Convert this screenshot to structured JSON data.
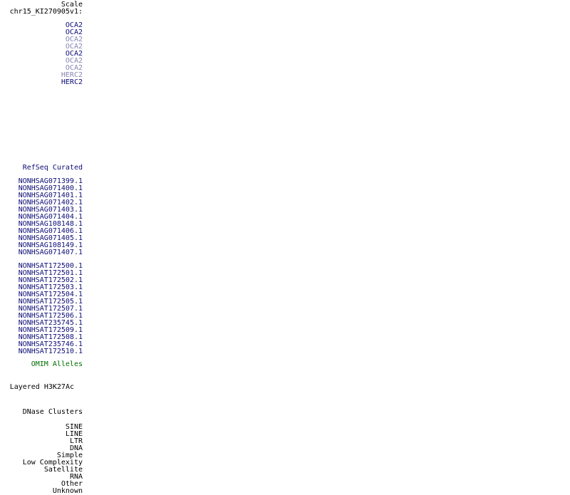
{
  "colors": {
    "page_bg": "#ffffff",
    "dark_blue": "#0c0c78",
    "light_blue": "#8486b4",
    "green": "#007000",
    "black": "#000000"
  },
  "ruler": {
    "scale_label": "Scale",
    "position_label": "chr15_KI270905v1:"
  },
  "gene_track": {
    "items": [
      {
        "label": "OCA2",
        "shade": "dark"
      },
      {
        "label": "OCA2",
        "shade": "dark"
      },
      {
        "label": "OCA2",
        "shade": "light"
      },
      {
        "label": "OCA2",
        "shade": "light"
      },
      {
        "label": "OCA2",
        "shade": "dark"
      },
      {
        "label": "OCA2",
        "shade": "light"
      },
      {
        "label": "OCA2",
        "shade": "light"
      },
      {
        "label": "HERC2",
        "shade": "light"
      },
      {
        "label": "HERC2",
        "shade": "dark"
      }
    ]
  },
  "refseq": {
    "title": "RefSeq Curated",
    "gene_ids": [
      "NONHSAG071399.1",
      "NONHSAG071400.1",
      "NONHSAG071401.1",
      "NONHSAG071402.1",
      "NONHSAG071403.1",
      "NONHSAG071404.1",
      "NONHSAG108148.1",
      "NONHSAG071406.1",
      "NONHSAG071405.1",
      "NONHSAG108149.1",
      "NONHSAG071407.1"
    ],
    "transcript_ids": [
      "NONHSAT172500.1",
      "NONHSAT172501.1",
      "NONHSAT172502.1",
      "NONHSAT172503.1",
      "NONHSAT172504.1",
      "NONHSAT172505.1",
      "NONHSAT172507.1",
      "NONHSAT172506.1",
      "NONHSAT235745.1",
      "NONHSAT172509.1",
      "NONHSAT172508.1",
      "NONHSAT235746.1",
      "NONHSAT172510.1"
    ]
  },
  "omim": {
    "title": "OMIM Alleles"
  },
  "h3k27ac": {
    "title": "Layered H3K27Ac"
  },
  "dnase": {
    "title": "DNase Clusters"
  },
  "repeat_track": {
    "classes": [
      "SINE",
      "LINE",
      "LTR",
      "DNA",
      "Simple",
      "Low Complexity",
      "Satellite",
      "RNA",
      "Other",
      "Unknown"
    ]
  }
}
